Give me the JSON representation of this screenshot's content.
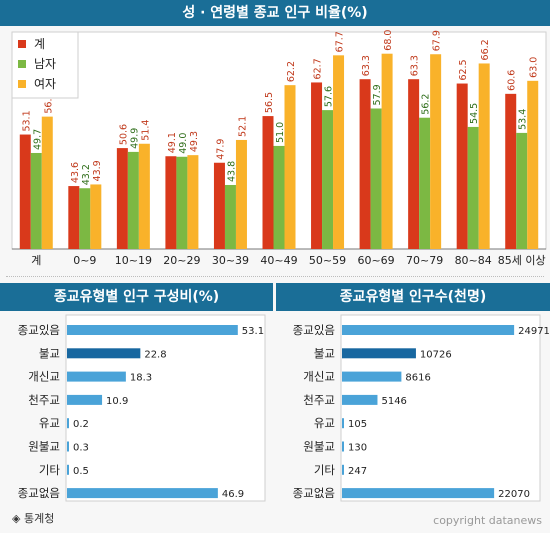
{
  "colors": {
    "header_bg": "#1a6e97",
    "total": "#d9391b",
    "male": "#7cb843",
    "female": "#f9b22a",
    "hbar": "#4aa3d8",
    "hbar_highlight": "#1767a0"
  },
  "chart_data": [
    {
      "type": "bar",
      "title": "성 · 연령별 종교 인구 비율(%)",
      "categories": [
        "계",
        "0~9",
        "10~19",
        "20~29",
        "30~39",
        "40~49",
        "50~59",
        "60~69",
        "70~79",
        "80~84",
        "85세 이상"
      ],
      "series": [
        {
          "name": "계",
          "values": [
            53.1,
            43.6,
            50.6,
            49.1,
            47.9,
            56.5,
            62.7,
            63.3,
            63.3,
            62.5,
            60.6
          ]
        },
        {
          "name": "남자",
          "values": [
            49.7,
            43.2,
            49.9,
            49.0,
            43.8,
            51.0,
            57.6,
            57.9,
            56.2,
            54.5,
            53.4
          ]
        },
        {
          "name": "여자",
          "values": [
            56.4,
            43.9,
            51.4,
            49.3,
            52.1,
            62.2,
            67.7,
            68.0,
            67.9,
            66.2,
            63.0
          ]
        }
      ],
      "ylim": [
        32,
        72
      ],
      "legend": "top-left"
    },
    {
      "type": "bar",
      "orientation": "horizontal",
      "title": "종교유형별 인구 구성비(%)",
      "categories": [
        "종교있음",
        "불교",
        "개신교",
        "천주교",
        "유교",
        "원불교",
        "기타",
        "종교없음"
      ],
      "values": [
        53.1,
        22.8,
        18.3,
        10.9,
        0.2,
        0.3,
        0.5,
        46.9
      ],
      "labels": [
        "53.1",
        "22.8",
        "18.3",
        "10.9",
        "0.2",
        "0.3",
        "0.5",
        "46.9"
      ],
      "highlight_index": 1,
      "xlim": [
        0,
        60
      ]
    },
    {
      "type": "bar",
      "orientation": "horizontal",
      "title": "종교유형별 인구수(천명)",
      "categories": [
        "종교있음",
        "불교",
        "개신교",
        "천주교",
        "유교",
        "원불교",
        "기타",
        "종교없음"
      ],
      "values": [
        24971,
        10726,
        8616,
        5146,
        105,
        130,
        247,
        22070
      ],
      "labels": [
        "24971",
        "10726",
        "8616",
        "5146",
        "105",
        "130",
        "247",
        "22070"
      ],
      "highlight_index": 1,
      "xlim": [
        0,
        28000
      ]
    }
  ],
  "footer": {
    "source": "◈ 통계청",
    "copyright": "copyright datanews"
  }
}
